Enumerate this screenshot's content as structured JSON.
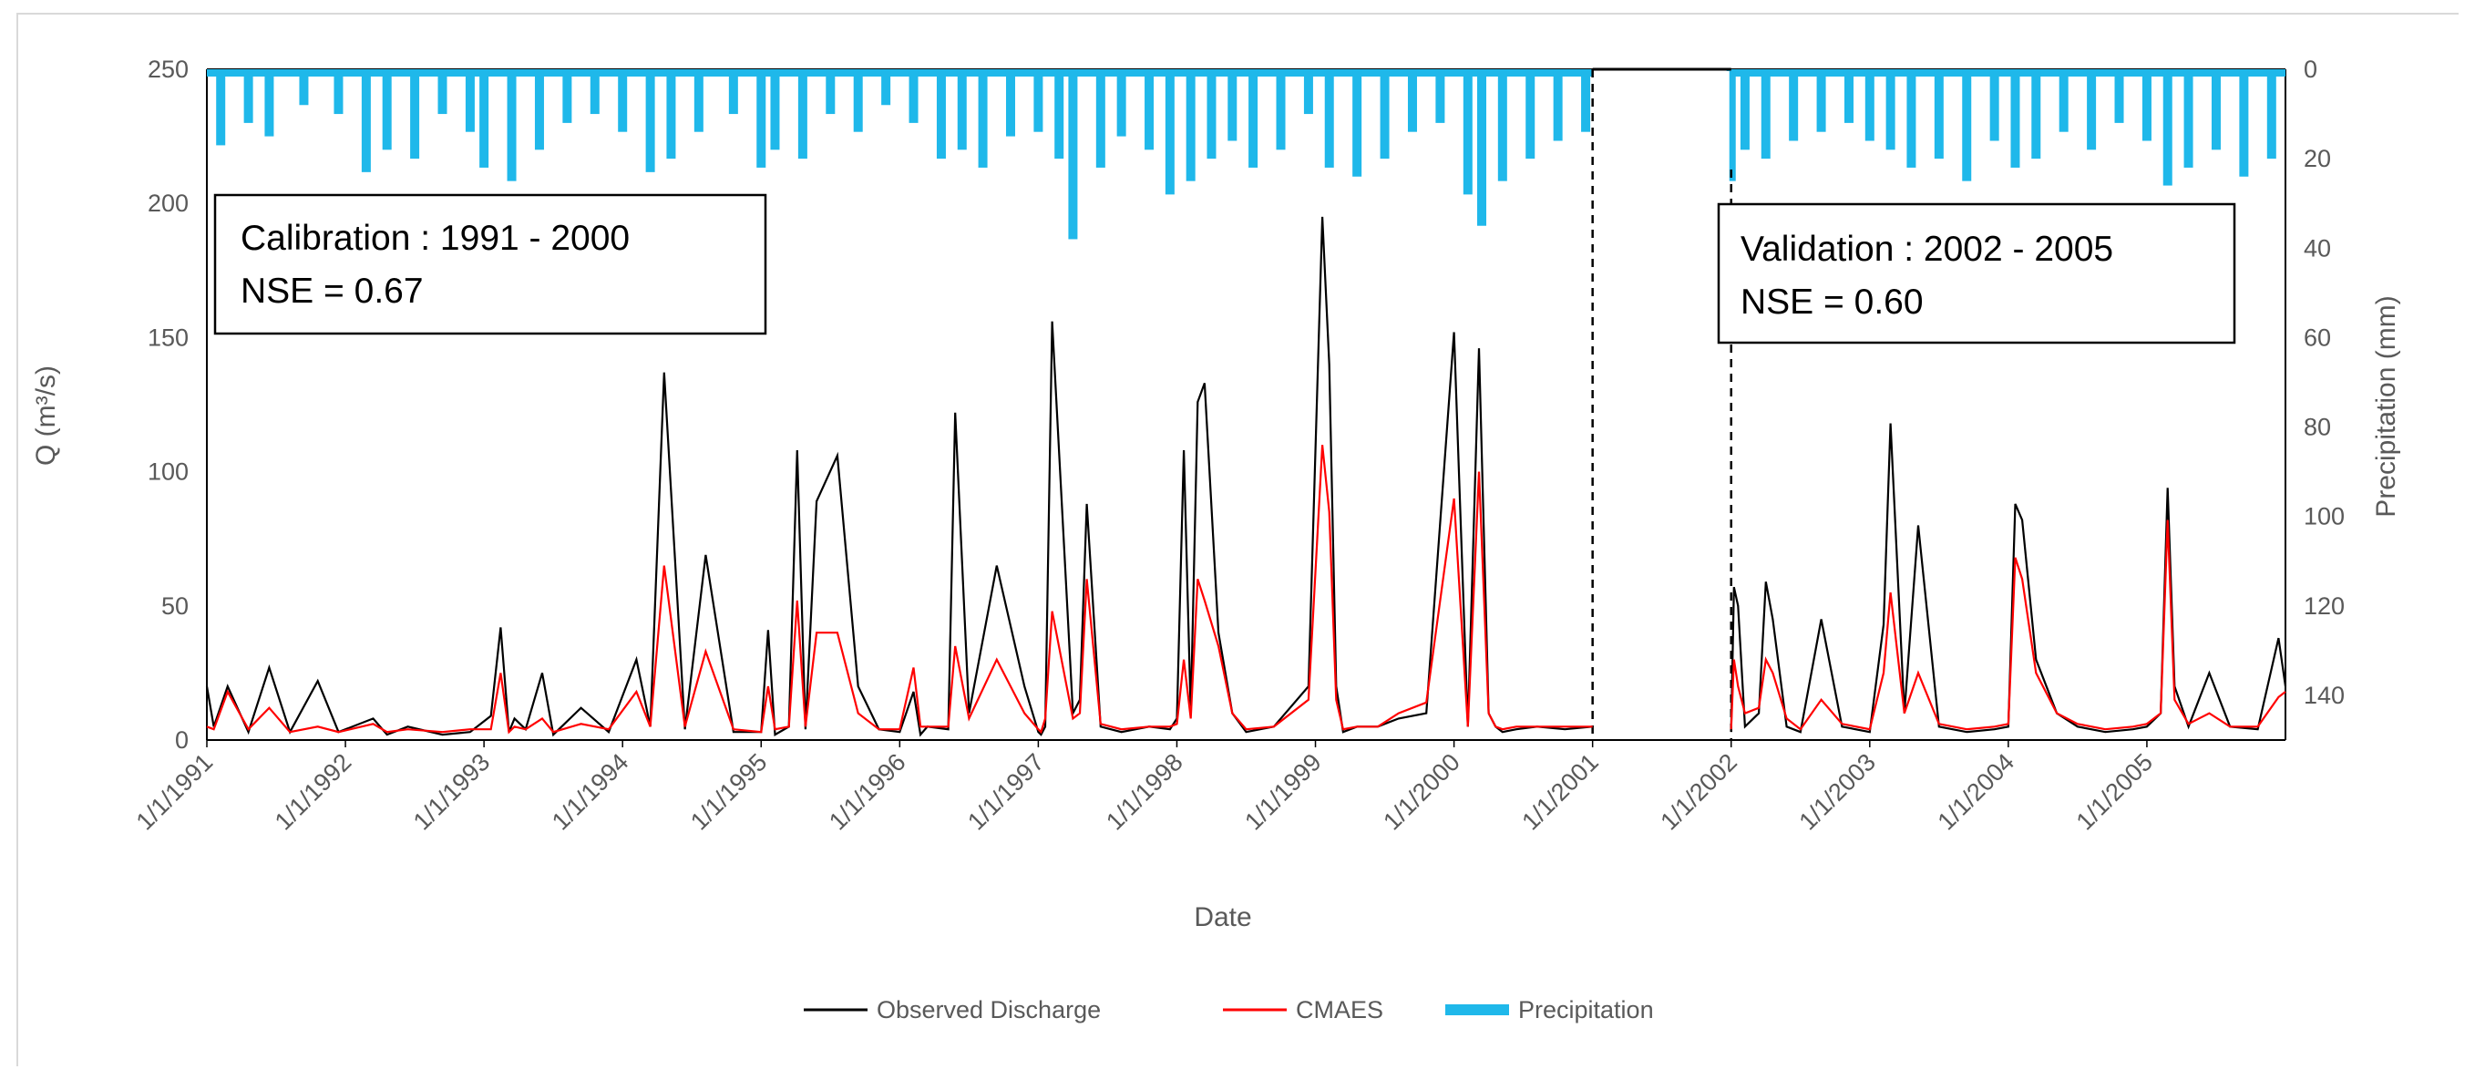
{
  "chart_data": {
    "type": "line",
    "title": "",
    "xlabel": "Date",
    "ylabel": "Q (m³/s)",
    "y2label": "Precipitation (mm)",
    "ylim": [
      0,
      250
    ],
    "y2lim": [
      150,
      0
    ],
    "y2_reversed": true,
    "grid": false,
    "xlim": [
      1991.0,
      2006.0
    ],
    "yticks": [
      "0",
      "50",
      "100",
      "150",
      "200",
      "250"
    ],
    "y2ticks": [
      "0",
      "20",
      "40",
      "60",
      "80",
      "100",
      "120",
      "140"
    ],
    "x_tick_labels": [
      "1/1/1991",
      "1/1/1992",
      "1/1/1993",
      "1/1/1994",
      "1/1/1995",
      "1/1/1996",
      "1/1/1997",
      "1/1/1998",
      "1/1/1999",
      "1/1/2000",
      "1/1/2001",
      "1/1/2002",
      "1/1/2003",
      "1/1/2004",
      "1/1/2005"
    ],
    "legend": [
      "Observed Discharge",
      "CMAES",
      "Precipitation"
    ],
    "legend_position": "bottom-center",
    "series_colors": {
      "observed": "#000000",
      "cmaes": "#ff0000",
      "precip": "#1fb8ea"
    },
    "gap": [
      2001.0,
      2002.0
    ],
    "annotations": {
      "calibration": {
        "line1": "Calibration : 1991 - 2000",
        "line2": "NSE = 0.67",
        "divider_x": 2001.0
      },
      "validation": {
        "line1": "Validation : 2002 - 2005",
        "line2": "NSE = 0.60",
        "divider_x": 2002.0
      }
    },
    "series": [
      {
        "name": "Observed Discharge",
        "axis": "left",
        "x": [
          1991.0,
          1991.05,
          1991.15,
          1991.3,
          1991.45,
          1991.6,
          1991.8,
          1991.95,
          1992.2,
          1992.3,
          1992.45,
          1992.7,
          1992.9,
          1993.05,
          1993.12,
          1993.18,
          1993.22,
          1993.3,
          1993.42,
          1993.5,
          1993.7,
          1993.9,
          1994.1,
          1994.2,
          1994.3,
          1994.45,
          1994.6,
          1994.8,
          1995.0,
          1995.05,
          1995.1,
          1995.2,
          1995.26,
          1995.32,
          1995.4,
          1995.55,
          1995.7,
          1995.85,
          1996.0,
          1996.1,
          1996.15,
          1996.2,
          1996.35,
          1996.4,
          1996.5,
          1996.7,
          1996.9,
          1997.0,
          1997.02,
          1997.05,
          1997.1,
          1997.25,
          1997.3,
          1997.35,
          1997.45,
          1997.6,
          1997.8,
          1997.95,
          1998.0,
          1998.05,
          1998.1,
          1998.15,
          1998.2,
          1998.3,
          1998.4,
          1998.5,
          1998.7,
          1998.95,
          1999.05,
          1999.1,
          1999.15,
          1999.2,
          1999.3,
          1999.45,
          1999.6,
          1999.8,
          2000.0,
          2000.1,
          2000.18,
          2000.25,
          2000.3,
          2000.35,
          2000.45,
          2000.6,
          2000.8,
          2001.0,
          2002.0,
          2002.02,
          2002.05,
          2002.1,
          2002.2,
          2002.25,
          2002.3,
          2002.4,
          2002.5,
          2002.65,
          2002.8,
          2003.0,
          2003.1,
          2003.15,
          2003.25,
          2003.35,
          2003.5,
          2003.7,
          2003.9,
          2004.0,
          2004.05,
          2004.1,
          2004.2,
          2004.35,
          2004.5,
          2004.7,
          2004.9,
          2005.0,
          2005.1,
          2005.15,
          2005.2,
          2005.3,
          2005.45,
          2005.6,
          2005.8,
          2005.95,
          2006.0
        ],
        "y": [
          20,
          5,
          20,
          3,
          27,
          3,
          22,
          3,
          8,
          2,
          5,
          2,
          3,
          9,
          42,
          3,
          8,
          4,
          25,
          2,
          12,
          3,
          30,
          5,
          137,
          4,
          69,
          3,
          3,
          41,
          2,
          5,
          108,
          4,
          89,
          106,
          20,
          4,
          3,
          18,
          2,
          5,
          4,
          122,
          10,
          65,
          20,
          3,
          2,
          5,
          156,
          10,
          15,
          88,
          5,
          3,
          5,
          4,
          8,
          108,
          10,
          126,
          133,
          40,
          10,
          3,
          5,
          20,
          195,
          140,
          20,
          3,
          5,
          5,
          8,
          10,
          152,
          5,
          146,
          10,
          5,
          3,
          4,
          5,
          4,
          5,
          3,
          57,
          50,
          5,
          10,
          59,
          45,
          5,
          3,
          45,
          5,
          3,
          43,
          118,
          10,
          80,
          5,
          3,
          4,
          5,
          88,
          82,
          30,
          10,
          5,
          3,
          4,
          5,
          10,
          94,
          20,
          5,
          25,
          5,
          4,
          38,
          20
        ]
      },
      {
        "name": "CMAES",
        "axis": "left",
        "x": [
          1991.0,
          1991.05,
          1991.15,
          1991.3,
          1991.45,
          1991.6,
          1991.8,
          1991.95,
          1992.2,
          1992.3,
          1992.45,
          1992.7,
          1992.9,
          1993.05,
          1993.12,
          1993.18,
          1993.22,
          1993.3,
          1993.42,
          1993.5,
          1993.7,
          1993.9,
          1994.1,
          1994.2,
          1994.3,
          1994.45,
          1994.6,
          1994.8,
          1995.0,
          1995.05,
          1995.1,
          1995.2,
          1995.26,
          1995.32,
          1995.4,
          1995.55,
          1995.7,
          1995.85,
          1996.0,
          1996.1,
          1996.15,
          1996.2,
          1996.35,
          1996.4,
          1996.5,
          1996.7,
          1996.9,
          1997.0,
          1997.02,
          1997.05,
          1997.1,
          1997.25,
          1997.3,
          1997.35,
          1997.45,
          1997.6,
          1997.8,
          1997.95,
          1998.0,
          1998.05,
          1998.1,
          1998.15,
          1998.2,
          1998.3,
          1998.4,
          1998.5,
          1998.7,
          1998.95,
          1999.05,
          1999.1,
          1999.15,
          1999.2,
          1999.3,
          1999.45,
          1999.6,
          1999.8,
          2000.0,
          2000.1,
          2000.18,
          2000.25,
          2000.3,
          2000.35,
          2000.45,
          2000.6,
          2000.8,
          2001.0,
          2002.0,
          2002.02,
          2002.05,
          2002.1,
          2002.2,
          2002.25,
          2002.3,
          2002.4,
          2002.5,
          2002.65,
          2002.8,
          2003.0,
          2003.1,
          2003.15,
          2003.25,
          2003.35,
          2003.5,
          2003.7,
          2003.9,
          2004.0,
          2004.05,
          2004.1,
          2004.2,
          2004.35,
          2004.5,
          2004.7,
          2004.9,
          2005.0,
          2005.1,
          2005.15,
          2005.2,
          2005.3,
          2005.45,
          2005.6,
          2005.8,
          2005.95,
          2006.0
        ],
        "y": [
          5,
          4,
          18,
          4,
          12,
          3,
          5,
          3,
          6,
          3,
          4,
          3,
          4,
          4,
          25,
          3,
          5,
          4,
          8,
          3,
          6,
          4,
          18,
          5,
          65,
          5,
          33,
          4,
          3,
          20,
          4,
          5,
          52,
          5,
          40,
          40,
          10,
          4,
          4,
          27,
          5,
          5,
          5,
          35,
          8,
          30,
          10,
          4,
          3,
          8,
          48,
          8,
          10,
          60,
          6,
          4,
          5,
          5,
          6,
          30,
          8,
          60,
          52,
          35,
          10,
          4,
          5,
          15,
          110,
          85,
          15,
          4,
          5,
          5,
          10,
          14,
          90,
          5,
          100,
          10,
          5,
          4,
          5,
          5,
          5,
          5,
          4,
          30,
          20,
          10,
          12,
          30,
          25,
          8,
          4,
          15,
          6,
          4,
          25,
          55,
          10,
          25,
          6,
          4,
          5,
          6,
          68,
          60,
          25,
          10,
          6,
          4,
          5,
          6,
          10,
          82,
          15,
          6,
          10,
          5,
          5,
          16,
          18
        ]
      },
      {
        "name": "Precipitation",
        "axis": "right",
        "x": [
          1991.1,
          1991.3,
          1991.45,
          1991.7,
          1991.95,
          1992.15,
          1992.3,
          1992.5,
          1992.7,
          1992.9,
          1993.0,
          1993.2,
          1993.4,
          1993.6,
          1993.8,
          1994.0,
          1994.2,
          1994.35,
          1994.55,
          1994.8,
          1995.0,
          1995.1,
          1995.3,
          1995.5,
          1995.7,
          1995.9,
          1996.1,
          1996.3,
          1996.45,
          1996.6,
          1996.8,
          1997.0,
          1997.15,
          1997.25,
          1997.45,
          1997.6,
          1997.8,
          1997.95,
          1998.1,
          1998.25,
          1998.4,
          1998.55,
          1998.75,
          1998.95,
          1999.1,
          1999.3,
          1999.5,
          1999.7,
          1999.9,
          2000.1,
          2000.2,
          2000.35,
          2000.55,
          2000.75,
          2000.95,
          2002.0,
          2002.1,
          2002.25,
          2002.45,
          2002.65,
          2002.85,
          2003.0,
          2003.15,
          2003.3,
          2003.5,
          2003.7,
          2003.9,
          2004.05,
          2004.2,
          2004.4,
          2004.6,
          2004.8,
          2005.0,
          2005.15,
          2005.3,
          2005.5,
          2005.7,
          2005.9
        ],
        "values": [
          17,
          12,
          15,
          8,
          10,
          23,
          18,
          20,
          10,
          14,
          22,
          25,
          18,
          12,
          10,
          14,
          23,
          20,
          14,
          10,
          22,
          18,
          20,
          10,
          14,
          8,
          12,
          20,
          18,
          22,
          15,
          14,
          20,
          38,
          22,
          15,
          18,
          28,
          25,
          20,
          16,
          22,
          18,
          10,
          22,
          24,
          20,
          14,
          12,
          28,
          35,
          25,
          20,
          16,
          14,
          25,
          18,
          20,
          16,
          14,
          12,
          16,
          18,
          22,
          20,
          25,
          16,
          22,
          20,
          14,
          18,
          12,
          16,
          26,
          22,
          18,
          24,
          20
        ]
      }
    ]
  }
}
